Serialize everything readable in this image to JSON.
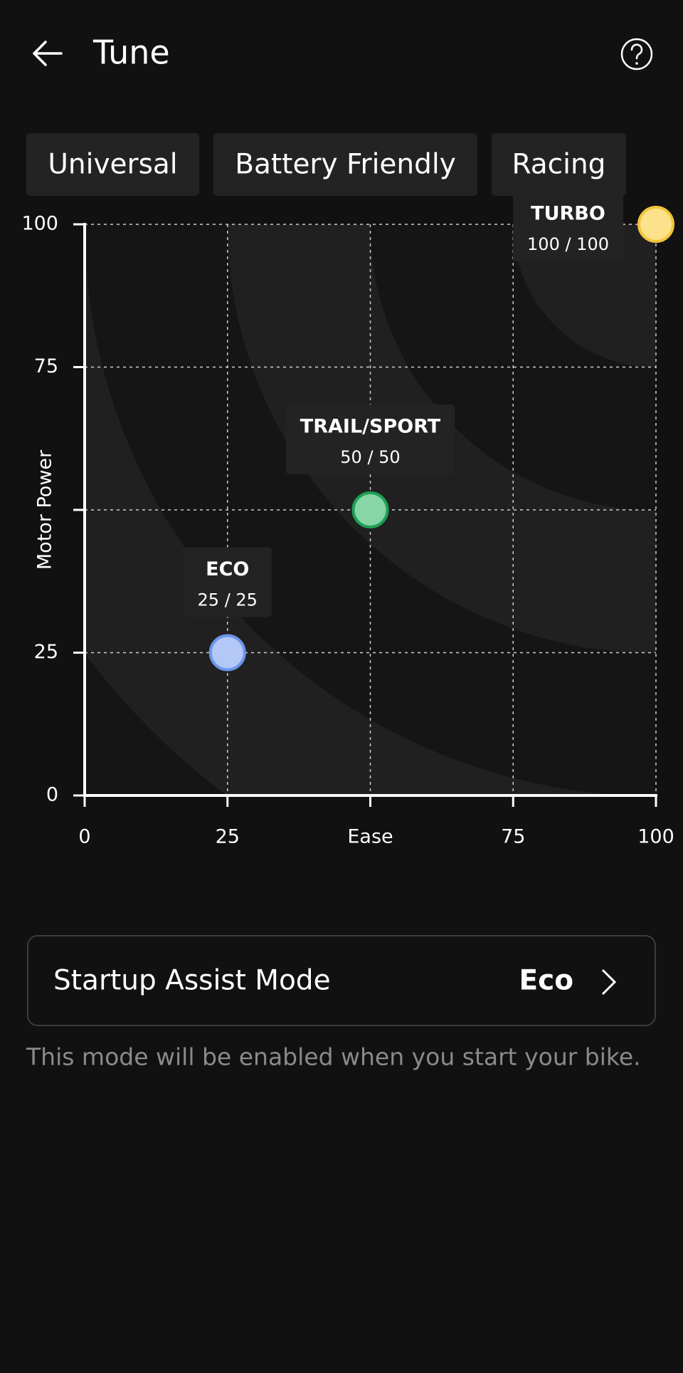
{
  "header": {
    "title": "Tune"
  },
  "tabs": [
    "Universal",
    "Battery Friendly",
    "Racing"
  ],
  "chart_data": {
    "type": "scatter",
    "x_label": "Ease",
    "y_label": "Motor Power",
    "xlim": [
      0,
      100
    ],
    "ylim": [
      0,
      100
    ],
    "xticks": [
      0,
      25,
      {
        "value": 50,
        "label": null
      },
      75,
      100
    ],
    "yticks": [
      0,
      25,
      {
        "value": 50,
        "label": null
      },
      75,
      100
    ],
    "grid": true,
    "series": [
      {
        "name": "ECO",
        "color": "#b3c8f7",
        "edge_color": "#6b96ec",
        "x": [
          25
        ],
        "values": [
          25
        ],
        "value_labels": [
          "25 / 25"
        ]
      },
      {
        "name": "TRAIL/SPORT",
        "color": "#88d5a6",
        "edge_color": "#1fa055",
        "x": [
          50
        ],
        "values": [
          50
        ],
        "value_labels": [
          "50 / 50"
        ]
      },
      {
        "name": "TURBO",
        "color": "#fce28a",
        "edge_color": "#f3c53f",
        "x": [
          100
        ],
        "values": [
          100
        ],
        "value_labels": [
          "100 / 100"
        ]
      }
    ]
  },
  "startup": {
    "label": "Startup Assist Mode",
    "value": "Eco",
    "description": "This mode will be enabled when you start your bike."
  }
}
